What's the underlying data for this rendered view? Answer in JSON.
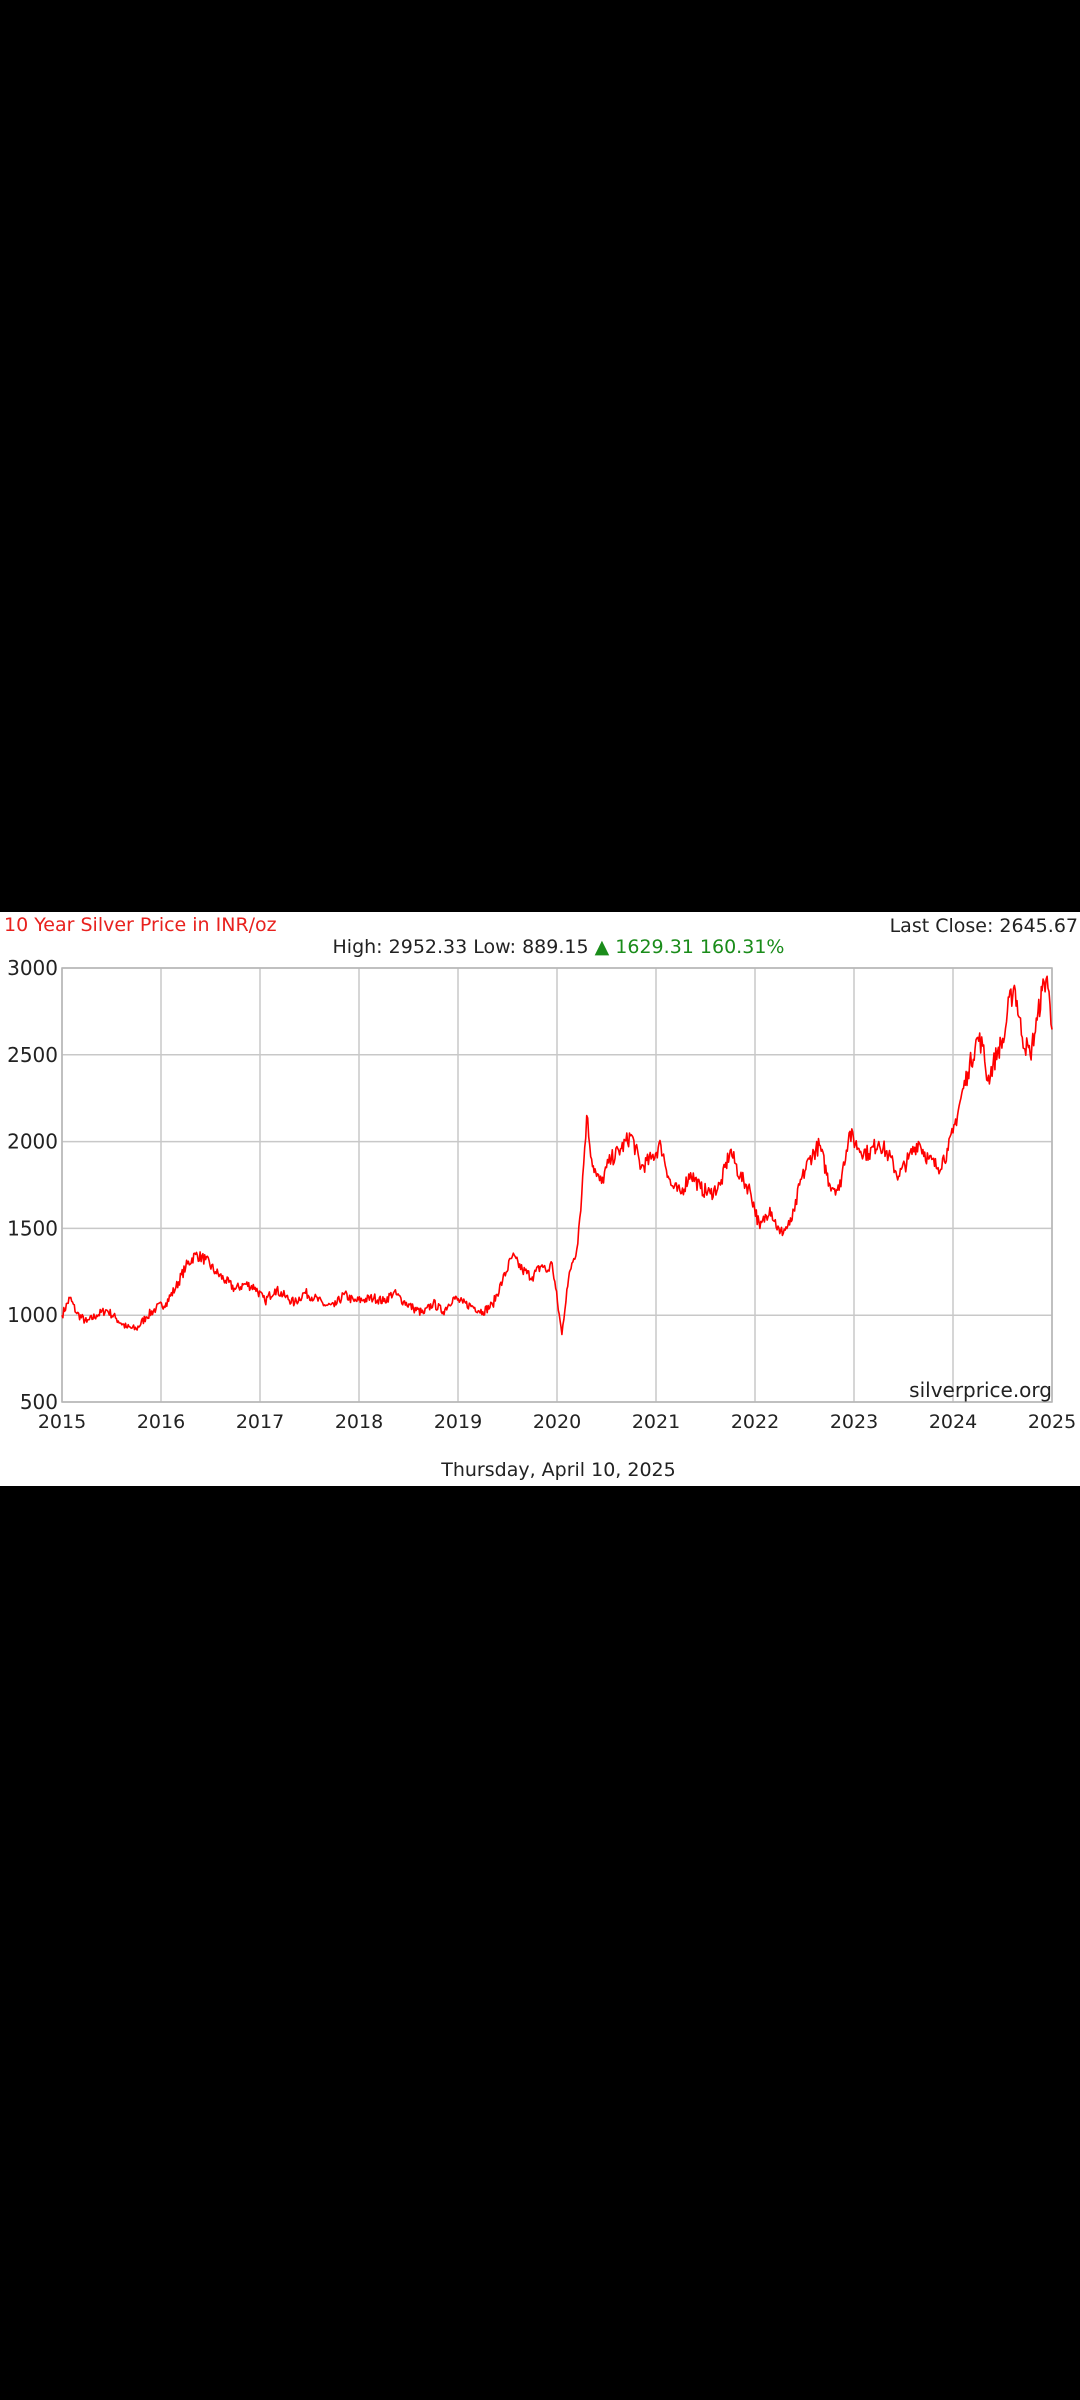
{
  "header": {
    "title": "10 Year Silver Price in INR/oz",
    "last_close_label": "Last Close:",
    "last_close_value": "2645.67",
    "high_label": "High:",
    "high_value": "2952.33",
    "low_label": "Low:",
    "low_value": "889.15",
    "change_arrow": "▲",
    "change_value": "1629.31",
    "change_percent": "160.31%"
  },
  "footer": {
    "date": "Thursday, April 10, 2025"
  },
  "watermark": "silverprice.org",
  "colors": {
    "line": "#ff0000",
    "title": "#e8211e",
    "change": "#1a8c1a",
    "grid": "#c8c8c8"
  },
  "chart_data": {
    "type": "line",
    "title": "10 Year Silver Price in INR/oz",
    "xlabel": "",
    "ylabel": "",
    "x_ticks": [
      "2015",
      "2016",
      "2017",
      "2018",
      "2019",
      "2020",
      "2021",
      "2022",
      "2023",
      "2024",
      "2025"
    ],
    "y_ticks": [
      "500",
      "1000",
      "1500",
      "2000",
      "2500",
      "3000"
    ],
    "xlim": [
      2015,
      2025
    ],
    "ylim": [
      500,
      3000
    ],
    "grid": true,
    "legend": "none",
    "series": [
      {
        "x": [
          2015.0,
          2015.08,
          2015.15,
          2015.25,
          2015.35,
          2015.45,
          2015.55,
          2015.65,
          2015.75,
          2015.85,
          2015.95,
          2016.05,
          2016.15,
          2016.25,
          2016.35,
          2016.45,
          2016.55,
          2016.65,
          2016.75,
          2016.85,
          2016.95,
          2017.05,
          2017.15,
          2017.25,
          2017.35,
          2017.45,
          2017.55,
          2017.65,
          2017.75,
          2017.85,
          2017.95,
          2018.05,
          2018.15,
          2018.25,
          2018.35,
          2018.45,
          2018.55,
          2018.65,
          2018.75,
          2018.85,
          2018.95,
          2019.05,
          2019.15,
          2019.25,
          2019.35,
          2019.45,
          2019.55,
          2019.65,
          2019.75,
          2019.85,
          2019.9,
          2019.95,
          2020.05,
          2020.1,
          2020.15,
          2020.2,
          2020.25,
          2020.3,
          2020.35,
          2020.4,
          2020.45,
          2020.5,
          2020.55,
          2020.65,
          2020.75,
          2020.85,
          2020.95,
          2021.05,
          2021.15,
          2021.25,
          2021.35,
          2021.45,
          2021.55,
          2021.65,
          2021.75,
          2021.85,
          2021.95,
          2022.05,
          2022.15,
          2022.25,
          2022.35,
          2022.4,
          2022.45,
          2022.55,
          2022.65,
          2022.75,
          2022.85,
          2022.95,
          2023.05,
          2023.15,
          2023.25,
          2023.35,
          2023.45,
          2023.55,
          2023.65,
          2023.75,
          2023.85,
          2023.95,
          2024.0,
          2024.08,
          2024.15,
          2024.25,
          2024.3,
          2024.35,
          2024.45,
          2024.52,
          2024.55,
          2024.62,
          2024.7,
          2024.78,
          2024.85,
          2024.9,
          2024.95,
          2025.0
        ],
        "y": [
          1000,
          1100,
          1010,
          960,
          1000,
          1030,
          980,
          930,
          920,
          990,
          1040,
          1070,
          1160,
          1280,
          1350,
          1320,
          1250,
          1200,
          1150,
          1180,
          1160,
          1080,
          1150,
          1110,
          1070,
          1130,
          1100,
          1060,
          1050,
          1120,
          1080,
          1090,
          1100,
          1080,
          1130,
          1080,
          1040,
          1010,
          1070,
          1020,
          1100,
          1070,
          1050,
          1020,
          1060,
          1200,
          1340,
          1260,
          1220,
          1290,
          1250,
          1300,
          889,
          1150,
          1300,
          1380,
          1700,
          2150,
          1900,
          1800,
          1760,
          1850,
          1900,
          1960,
          2040,
          1850,
          1900,
          1980,
          1750,
          1700,
          1820,
          1730,
          1700,
          1750,
          1950,
          1800,
          1720,
          1500,
          1620,
          1470,
          1520,
          1600,
          1750,
          1900,
          1980,
          1760,
          1720,
          2050,
          1960,
          1930,
          2000,
          1920,
          1800,
          1900,
          2000,
          1900,
          1850,
          1950,
          2050,
          2250,
          2400,
          2600,
          2550,
          2350,
          2520,
          2600,
          2750,
          2900,
          2600,
          2500,
          2700,
          2870,
          2952,
          2646
        ]
      }
    ]
  }
}
